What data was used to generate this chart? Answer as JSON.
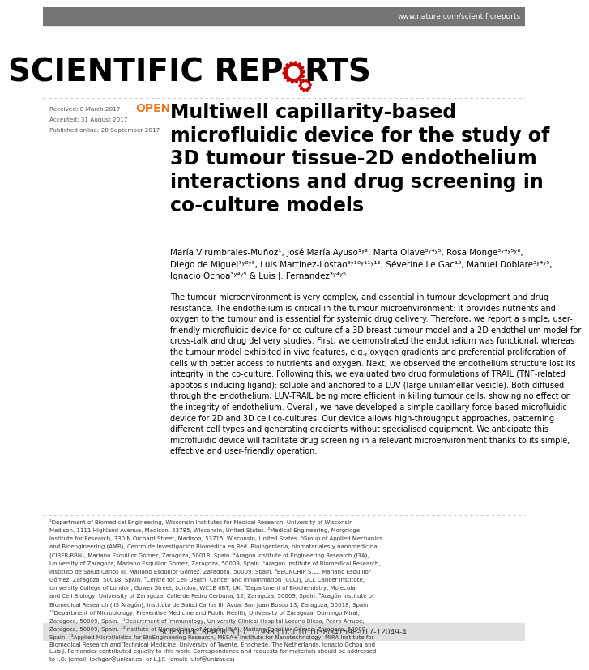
{
  "bg_color": "#ffffff",
  "header_bg": "#757575",
  "header_text": "www.nature.com/scientificreports",
  "header_text_color": "#ffffff",
  "journal_title_black": "SCIENTIFIC REP",
  "journal_title_red": "O",
  "journal_title_end": "RTS",
  "open_label": "OPEN",
  "open_color": "#e87722",
  "article_title": "Multiwell capillarity-based\nmicrofluidic device for the study of\n3D tumour tissue-2D endothelium\ninteractions and drug screening in\nco-culture models",
  "received_label": "Received: 8 March 2017",
  "accepted_label": "Accepted: 31 August 2017",
  "published_label": "Published online: 20 September 2017",
  "authors": "María Virumbrales-Muñoz¹, José María Ayuso¹ʸ², Marta Olave³ʸ⁴ʸ⁵, Rosa Monge³ʸ⁴ʸ⁵ʸ⁶,\nDiego de Miguel⁷ʸ⁸ʸ⁹, Luis Martinez-Lostao⁹ʸ¹⁰ʸ¹¹ʸ¹², Séverine Le Gac¹³, Manuel Doblare³ʸ⁴ʸ⁵,\nIgnacio Ochoa³ʸ⁴ʸ⁵ & Luis J. Fernandez³ʸ⁴ʸ⁵",
  "abstract_text": "The tumour microenvironment is very complex, and essential in tumour development and drug\nresistance. The endothelium is critical in the tumour microenvironment: it provides nutrients and\noxygen to the tumour and is essential for systemic drug delivery. Therefore, we report a simple, user-\nfriendly microfluidic device for co-culture of a 3D breast tumour model and a 2D endothelium model for\ncross-talk and drug delivery studies. First, we demonstrated the endothelium was functional, whereas\nthe tumour model exhibited in vivo features, e.g., oxygen gradients and preferential proliferation of\ncells with better access to nutrients and oxygen. Next, we observed the endothelium structure lost its\nintegrity in the co-culture. Following this, we evaluated two drug formulations of TRAIL (TNF-related\napoptosis inducing ligand): soluble and anchored to a LUV (large unilamellar vesicle). Both diffused\nthrough the endothelium, LUV-TRAIL being more efficient in killing tumour cells, showing no effect on\nthe integrity of endothelium. Overall, we have developed a simple capillary force-based microfluidic\ndevice for 2D and 3D cell co-cultures. Our device allows high-throughput approaches, patterning\ndifferent cell types and generating gradients without specialised equipment. We anticipate this\nmicrofluidic device will facilitate drug screening in a relevant microenvironment thanks to its simple,\neffective and user-friendly operation.",
  "footnote_text": "¹Department of Biomedical Engineering, Wisconsin Institutes for Medical Research, University of Wisconsin-\nMadison, 1111 Highland Avenue, Madison, 53785, Wisconsin, United States. ²Medical Engineering, Morgridge\nInstitute for Research, 330 N Orchard Street, Madison, 53715, Wisconsin, United States. ³Group of Applied Mechanics\nand Bioengineering (AMB), Centro de Investigación Biomédica en Red. Bioingeniería, biomateriales y nanomedicina\n(CIBER-BBN), Mariano Esquillor Gómez, Zaragoza, 50018, Spain. ⁴Aragón Institute of Engineering Research (I3A),\nUniversity of Zaragoza, Mariano Esquillor Gómez, Zaragoza, 50009, Spain. ⁵Aragón Institute of Biomedical Research,\nInstituto de Salud Carlos III, Mariano Esquillor Gómez, Zaragoza, 50009, Spain. ⁶BEONCHIP S.L., Mariano Esquillor\nGómez, Zaragoza, 50018, Spain. ⁷Centre for Cell Death, Cancer and Inflammation (CCCI), UCL Cancer Institute,\nUniversity College of London, Gower Street, London, WC1E 6BT, UK. ⁸Department of Biochemistry, Molecular\nand Cell Biology, University of Zaragoza, Calle de Pedro Cerbuna, 12, Zaragoza, 50009, Spain. ⁹Aragón Institute of\nBiomedical Research (IIS Aragón), Instituto de Salud Carlos III, Avda. San Juan Bosco 13, Zaragoza, 50018, Spain.\n¹⁰Department of Microbiology, Preventive Medicine and Public Health, University of Zaragoza, Domingo Miral,\nZaragoza, 50009, Spain. ¹¹Department of Immunology, University Clinical Hospital Lozano Blesa, Pedro Arrupe,\nZaragoza, 50009, Spain. ¹²Institute of Nanoscience of Aragón (INA), Mariano Esquillor Gómez, Zaragoza, 50009,\nSpain. ¹³Applied Microfluidics for BioEngineering Research, MESA+ Institute for Nanotechnology, MIRA Institute for\nBiomedical Research and Technical Medicine, University of Twente, Enschede, The Netherlands. Ignacio Ochoa and\nLuis J. Fernandez contributed equally to this work. Correspondence and requests for materials should be addressed\nto I.O. (email: iochgar@unizar.es) or L.J.F. (email: luisf@unizar.es)",
  "bottom_bar_text": "SCIENTIFIC REPORTS | 7: 11998 | DOI:10.1038/s41598-017-12049-4",
  "bottom_bar_bg": "#e0e0e0",
  "separator_color": "#cccccc",
  "title_font_size": 17,
  "author_font_size": 7.5,
  "abstract_font_size": 7.0,
  "footnote_font_size": 5.0
}
